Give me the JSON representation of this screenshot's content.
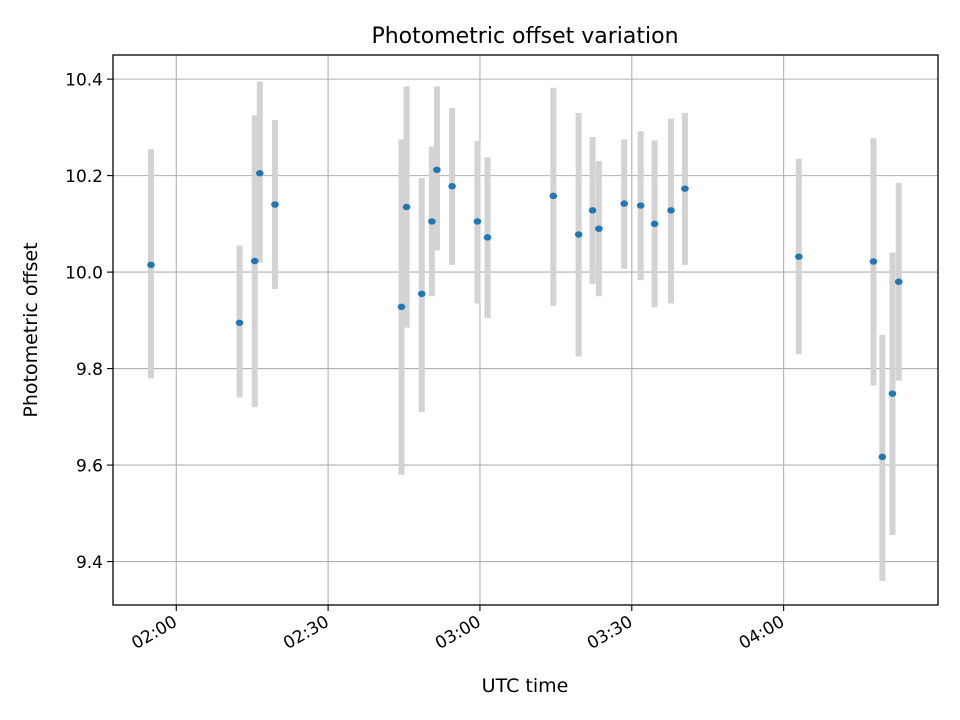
{
  "chart_data": {
    "type": "scatter",
    "title": "Photometric offset variation",
    "xlabel": "UTC time",
    "ylabel": "Photometric offset",
    "xlim": [
      "01:47:30",
      "04:30:30"
    ],
    "ylim": [
      9.31,
      10.45
    ],
    "xticks": [
      "02:00",
      "02:30",
      "03:00",
      "03:30",
      "04:00"
    ],
    "yticks": [
      "9.4",
      "9.6",
      "9.8",
      "10.0",
      "10.2",
      "10.4"
    ],
    "grid": true,
    "colors": {
      "marker": "#1f77b4",
      "errorbar": "#d3d3d3",
      "grid": "#b0b0b0"
    },
    "points": [
      {
        "t": "01:55",
        "y": 10.015,
        "lo": 9.78,
        "hi": 10.255
      },
      {
        "t": "02:12:30",
        "y": 9.895,
        "lo": 9.74,
        "hi": 10.055
      },
      {
        "t": "02:15:30",
        "y": 10.023,
        "lo": 9.72,
        "hi": 10.325
      },
      {
        "t": "02:16:30",
        "y": 10.205,
        "lo": 10.02,
        "hi": 10.395
      },
      {
        "t": "02:19:30",
        "y": 10.14,
        "lo": 9.965,
        "hi": 10.315
      },
      {
        "t": "02:44:30",
        "y": 9.928,
        "lo": 9.58,
        "hi": 10.275
      },
      {
        "t": "02:45:30",
        "y": 10.135,
        "lo": 9.885,
        "hi": 10.385
      },
      {
        "t": "02:48:30",
        "y": 9.955,
        "lo": 9.71,
        "hi": 10.195
      },
      {
        "t": "02:50:30",
        "y": 10.105,
        "lo": 9.95,
        "hi": 10.26
      },
      {
        "t": "02:51:30",
        "y": 10.212,
        "lo": 10.045,
        "hi": 10.385
      },
      {
        "t": "02:54:30",
        "y": 10.178,
        "lo": 10.015,
        "hi": 10.34
      },
      {
        "t": "02:59:30",
        "y": 10.105,
        "lo": 9.935,
        "hi": 10.272
      },
      {
        "t": "03:01:30",
        "y": 10.072,
        "lo": 9.905,
        "hi": 10.238
      },
      {
        "t": "03:14:30",
        "y": 10.158,
        "lo": 9.93,
        "hi": 10.382
      },
      {
        "t": "03:19:30",
        "y": 10.078,
        "lo": 9.825,
        "hi": 10.33
      },
      {
        "t": "03:22:15",
        "y": 10.128,
        "lo": 9.975,
        "hi": 10.28
      },
      {
        "t": "03:23:30",
        "y": 10.09,
        "lo": 9.95,
        "hi": 10.23
      },
      {
        "t": "03:28:30",
        "y": 10.142,
        "lo": 10.007,
        "hi": 10.275
      },
      {
        "t": "03:31:45",
        "y": 10.138,
        "lo": 9.983,
        "hi": 10.292
      },
      {
        "t": "03:34:30",
        "y": 10.1,
        "lo": 9.927,
        "hi": 10.273
      },
      {
        "t": "03:37:45",
        "y": 10.128,
        "lo": 9.935,
        "hi": 10.318
      },
      {
        "t": "03:40:30",
        "y": 10.173,
        "lo": 10.015,
        "hi": 10.33
      },
      {
        "t": "04:03:00",
        "y": 10.032,
        "lo": 9.83,
        "hi": 10.235
      },
      {
        "t": "04:17:45",
        "y": 10.022,
        "lo": 9.765,
        "hi": 10.278
      },
      {
        "t": "04:19:30",
        "y": 9.617,
        "lo": 9.36,
        "hi": 9.87
      },
      {
        "t": "04:21:30",
        "y": 9.748,
        "lo": 9.455,
        "hi": 10.04
      },
      {
        "t": "04:22:45",
        "y": 9.98,
        "lo": 9.775,
        "hi": 10.185
      }
    ]
  }
}
